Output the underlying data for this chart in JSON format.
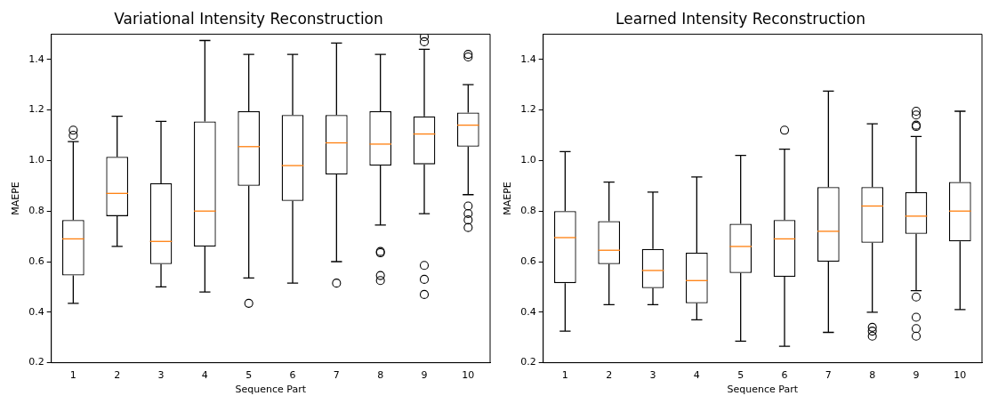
{
  "chart_data": [
    {
      "type": "box",
      "title": "Variational Intensity Reconstruction",
      "xlabel": "Sequence Part",
      "ylabel": "MAEPE",
      "categories": [
        "1",
        "2",
        "3",
        "4",
        "5",
        "6",
        "7",
        "8",
        "9",
        "10"
      ],
      "ylim": [
        0.2,
        1.5
      ],
      "yticks": [
        0.2,
        0.4,
        0.6,
        0.8,
        {
          "value": 1,
          "label": "1.0"
        },
        1.2,
        1.4
      ],
      "grid": false,
      "legend": false,
      "color": "#000000",
      "boxes": [
        {
          "low": 0.435,
          "q1": 0.545,
          "median": 0.69,
          "q3": 0.765,
          "high": 1.075,
          "outliers": [
            1.1,
            1.12
          ]
        },
        {
          "low": 0.66,
          "q1": 0.78,
          "median": 0.87,
          "q3": 1.015,
          "high": 1.175
        },
        {
          "low": 0.5,
          "q1": 0.59,
          "median": 0.68,
          "q3": 0.91,
          "high": 1.155
        },
        {
          "low": 0.48,
          "q1": 0.66,
          "median": 0.8,
          "q3": 1.155,
          "high": 1.475
        },
        {
          "low": 0.535,
          "q1": 0.9,
          "median": 1.055,
          "q3": 1.195,
          "high": 1.42,
          "outliers": [
            0.435
          ]
        },
        {
          "low": 0.515,
          "q1": 0.84,
          "median": 0.98,
          "q3": 1.18,
          "high": 1.42
        },
        {
          "low": 0.6,
          "q1": 0.945,
          "median": 1.07,
          "q3": 1.18,
          "high": 1.465,
          "outliers": [
            0.515
          ]
        },
        {
          "low": 0.745,
          "q1": 0.98,
          "median": 1.065,
          "q3": 1.195,
          "high": 1.42,
          "outliers": [
            0.64,
            0.635,
            0.545,
            0.525
          ]
        },
        {
          "low": 0.79,
          "q1": 0.985,
          "median": 1.105,
          "q3": 1.175,
          "high": 1.44,
          "outliers": [
            1.47,
            1.49,
            0.585,
            0.53,
            0.47
          ]
        },
        {
          "low": 0.865,
          "q1": 1.055,
          "median": 1.14,
          "q3": 1.19,
          "high": 1.3,
          "outliers": [
            1.41,
            1.42,
            0.82,
            0.79,
            0.765,
            0.735
          ]
        }
      ]
    },
    {
      "type": "box",
      "title": "Learned Intensity Reconstruction",
      "xlabel": "Sequence Part",
      "ylabel": "MAEPE",
      "categories": [
        "1",
        "2",
        "3",
        "4",
        "5",
        "6",
        "7",
        "8",
        "9",
        "10"
      ],
      "ylim": [
        0.2,
        1.5
      ],
      "yticks": [
        0.2,
        0.4,
        0.6,
        0.8,
        {
          "value": 1,
          "label": "1.0"
        },
        1.2,
        1.4
      ],
      "grid": false,
      "legend": false,
      "color": "#000000",
      "boxes": [
        {
          "low": 0.325,
          "q1": 0.515,
          "median": 0.695,
          "q3": 0.8,
          "high": 1.035
        },
        {
          "low": 0.43,
          "q1": 0.59,
          "median": 0.645,
          "q3": 0.76,
          "high": 0.915
        },
        {
          "low": 0.43,
          "q1": 0.495,
          "median": 0.565,
          "q3": 0.65,
          "high": 0.875
        },
        {
          "low": 0.37,
          "q1": 0.435,
          "median": 0.525,
          "q3": 0.635,
          "high": 0.935
        },
        {
          "low": 0.285,
          "q1": 0.555,
          "median": 0.66,
          "q3": 0.75,
          "high": 1.02
        },
        {
          "low": 0.265,
          "q1": 0.54,
          "median": 0.69,
          "q3": 0.765,
          "high": 1.045,
          "outliers": [
            1.12
          ]
        },
        {
          "low": 0.32,
          "q1": 0.6,
          "median": 0.72,
          "q3": 0.895,
          "high": 1.275
        },
        {
          "low": 0.4,
          "q1": 0.675,
          "median": 0.82,
          "q3": 0.895,
          "high": 1.145,
          "outliers": [
            0.34,
            0.325,
            0.305
          ]
        },
        {
          "low": 0.485,
          "q1": 0.71,
          "median": 0.78,
          "q3": 0.875,
          "high": 1.095,
          "outliers": [
            1.135,
            1.14,
            1.18,
            1.195,
            0.46,
            0.38,
            0.335,
            0.305
          ]
        },
        {
          "low": 0.41,
          "q1": 0.68,
          "median": 0.8,
          "q3": 0.915,
          "high": 1.195
        }
      ]
    }
  ]
}
